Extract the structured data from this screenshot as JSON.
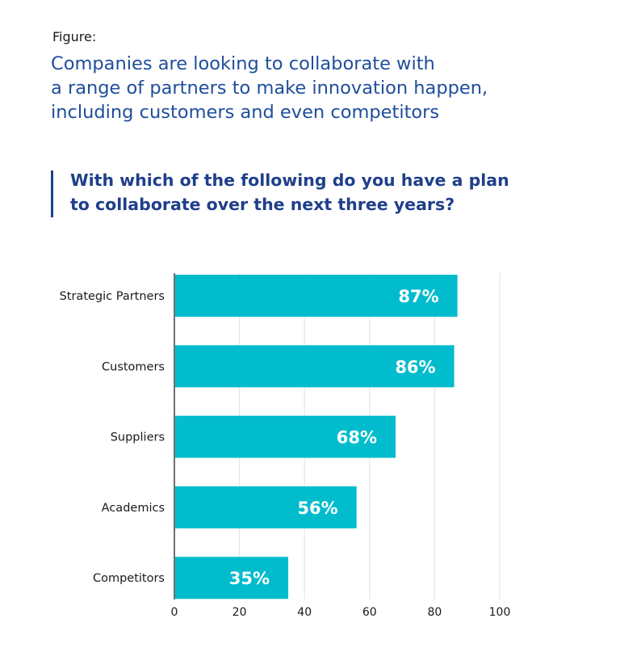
{
  "figure_label": "Figure:",
  "headline_lines": [
    "Companies are looking to collaborate with",
    "a range of partners to make innovation happen,",
    "including customers and even competitors"
  ],
  "question_lines": [
    "With which of the following do you have a plan",
    "to collaborate over the next three years?"
  ],
  "colors": {
    "bar": "#00bccc",
    "bar_label": "#ffffff",
    "grid": "#e6e6e6",
    "axis": "#333333",
    "headline": "#1f4e9c",
    "question": "#1f3f8a"
  },
  "chart_data": {
    "type": "bar",
    "orientation": "horizontal",
    "categories": [
      "Strategic Partners",
      "Customers",
      "Suppliers",
      "Academics",
      "Competitors"
    ],
    "values": [
      87,
      86,
      68,
      56,
      35
    ],
    "value_labels": [
      "87%",
      "86%",
      "68%",
      "56%",
      "35%"
    ],
    "x_ticks": [
      "0",
      "20",
      "40",
      "60",
      "80",
      "100"
    ],
    "xlim": [
      0,
      100
    ],
    "grid": true,
    "legend": "none"
  }
}
